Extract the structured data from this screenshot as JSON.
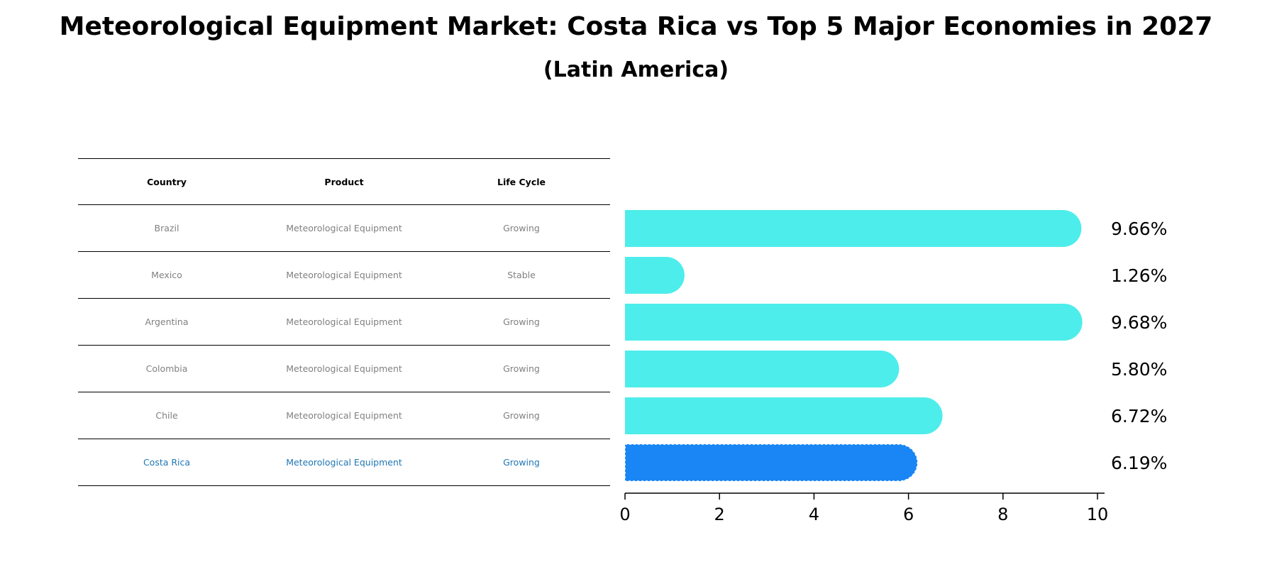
{
  "title": "Meteorological Equipment Market: Costa Rica vs Top 5 Major Economies in 2027",
  "subtitle": "(Latin America)",
  "table": {
    "headers": [
      "Country",
      "Product",
      "Life Cycle"
    ],
    "rows": [
      [
        "Brazil",
        "Meteorological Equipment",
        "Growing"
      ],
      [
        "Mexico",
        "Meteorological Equipment",
        "Stable"
      ],
      [
        "Argentina",
        "Meteorological Equipment",
        "Growing"
      ],
      [
        "Colombia",
        "Meteorological Equipment",
        "Growing"
      ],
      [
        "Chile",
        "Meteorological Equipment",
        "Growing"
      ],
      [
        "Costa Rica",
        "Meteorological Equipment",
        "Growing"
      ]
    ]
  },
  "chart_data": {
    "type": "bar",
    "orientation": "horizontal",
    "title": "Meteorological Equipment Market: Costa Rica vs Top 5 Major Economies in 2027",
    "subtitle": "(Latin America)",
    "categories": [
      "Brazil",
      "Mexico",
      "Argentina",
      "Colombia",
      "Chile",
      "Costa Rica"
    ],
    "values": [
      9.66,
      1.26,
      9.68,
      5.8,
      6.72,
      6.19
    ],
    "value_labels": [
      "9.66%",
      "1.26%",
      "9.68%",
      "5.80%",
      "6.72%",
      "6.19%"
    ],
    "highlight_index": 5,
    "xlim": [
      0,
      10
    ],
    "xticks": [
      0,
      2,
      4,
      6,
      8,
      10
    ],
    "xlabel": "",
    "ylabel": "",
    "colors": {
      "default": "#4DEDEB",
      "highlight": "#1A86F5"
    }
  }
}
